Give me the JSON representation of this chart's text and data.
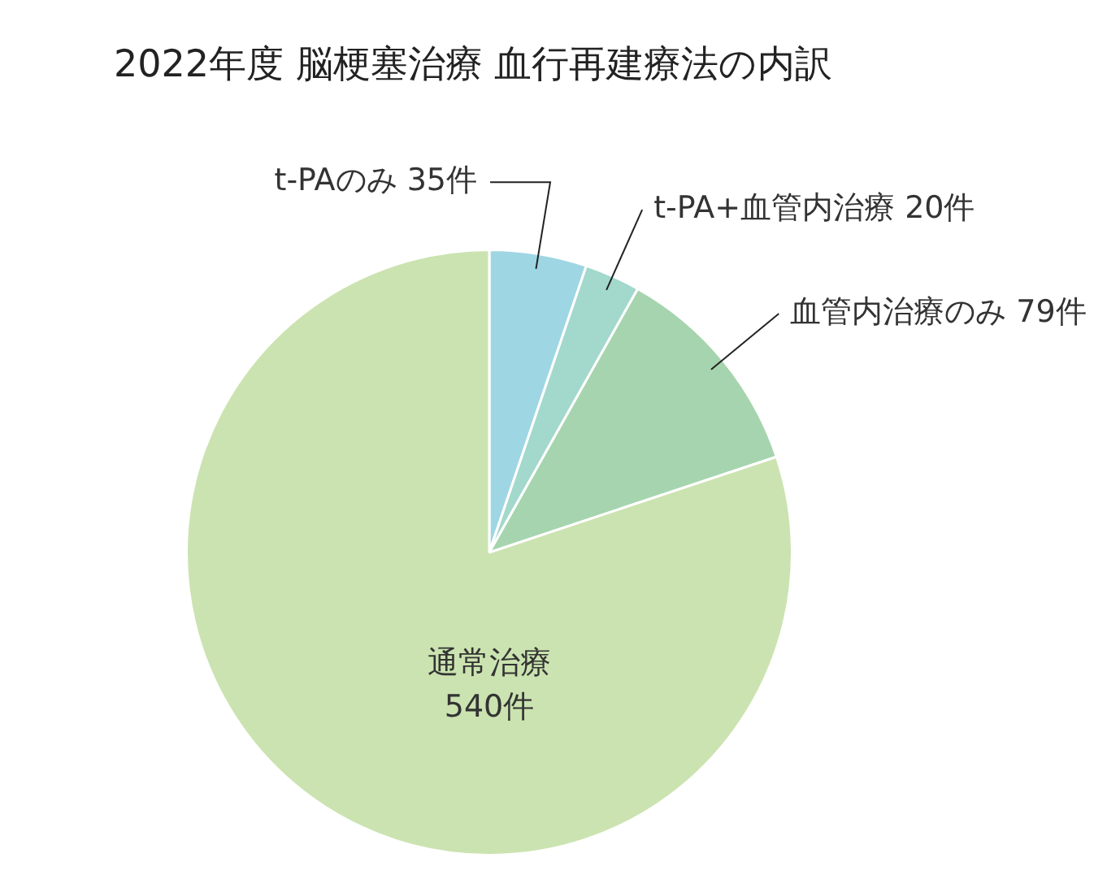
{
  "chart_data": {
    "type": "pie",
    "title": "2022年度 脳梗塞治療 血行再建療法の内訳",
    "categories": [
      "t-PAのみ",
      "t-PA+血管内治療",
      "血管内治療のみ",
      "通常治療"
    ],
    "values": [
      35,
      20,
      79,
      540
    ],
    "colors": [
      "#9fd6e4",
      "#a3d8cc",
      "#a6d4ae",
      "#cbe3b0"
    ],
    "value_labels": [
      "35件",
      "20件",
      "79件",
      "540件"
    ]
  }
}
